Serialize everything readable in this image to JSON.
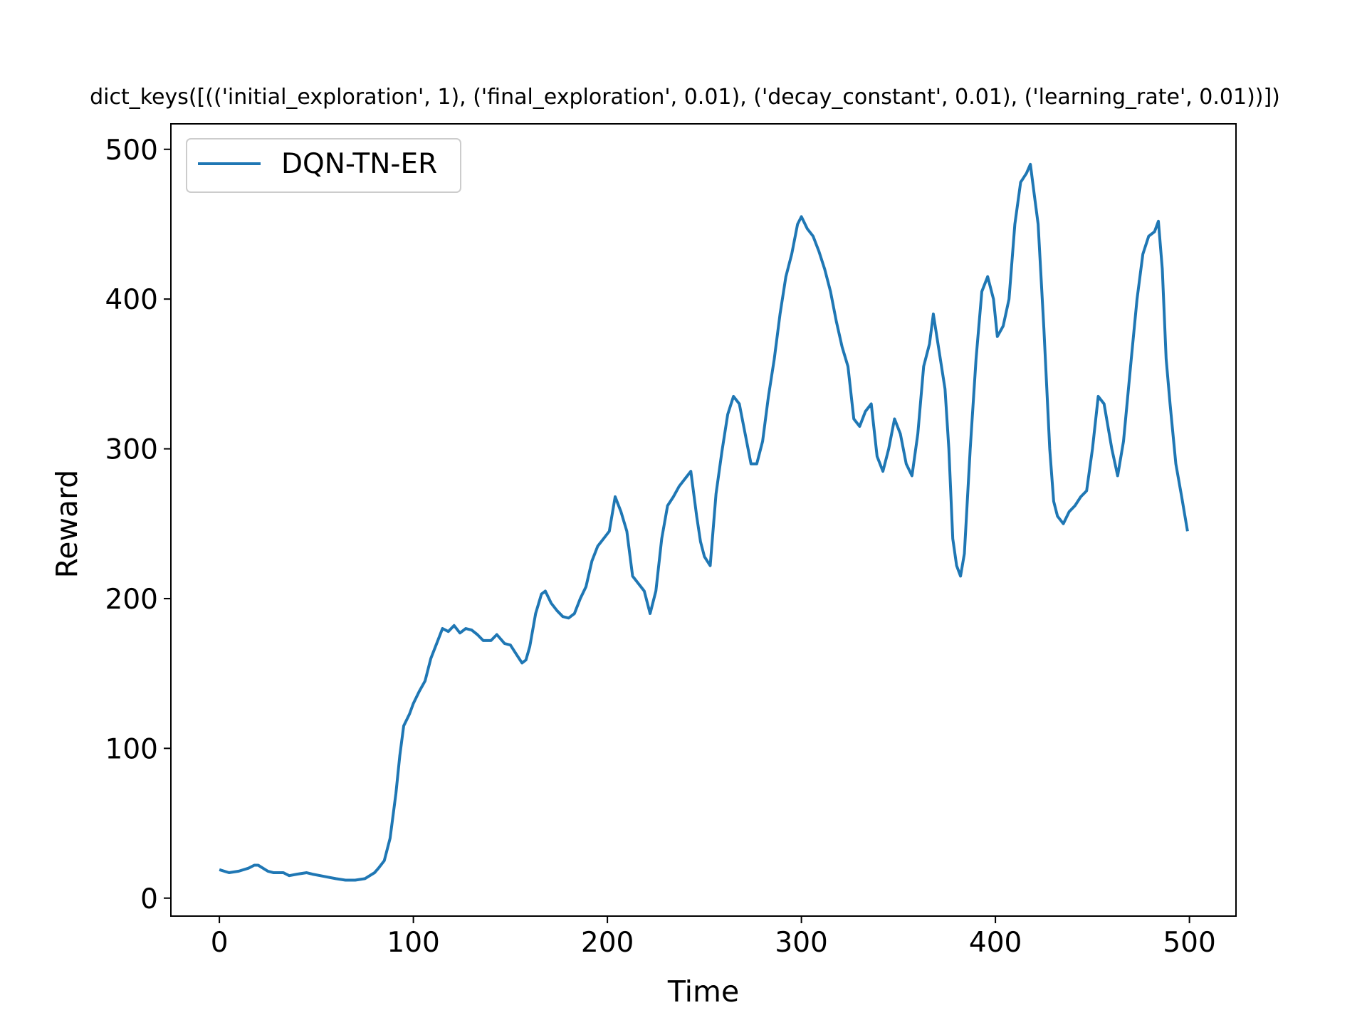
{
  "chart_data": {
    "type": "line",
    "title": "dict_keys([(('initial_exploration', 1), ('final_exploration', 0.01), ('decay_constant', 0.01), ('learning_rate', 0.01))])",
    "xlabel": "Time",
    "ylabel": "Reward",
    "xlim": [
      -25,
      524
    ],
    "ylim": [
      -12,
      517
    ],
    "xticks": [
      0,
      100,
      200,
      300,
      400,
      500
    ],
    "yticks": [
      0,
      100,
      200,
      300,
      400,
      500
    ],
    "grid": false,
    "legend_position": "top-left",
    "series": [
      {
        "name": "DQN-TN-ER",
        "color": "#1f77b4",
        "x": [
          0,
          5,
          10,
          15,
          18,
          20,
          25,
          28,
          33,
          36,
          40,
          45,
          48,
          52,
          56,
          60,
          65,
          70,
          75,
          80,
          82,
          85,
          88,
          91,
          93,
          95,
          98,
          100,
          103,
          106,
          109,
          112,
          115,
          118,
          121,
          124,
          127,
          130,
          133,
          136,
          140,
          143,
          147,
          150,
          153,
          156,
          158,
          160,
          163,
          166,
          168,
          171,
          174,
          177,
          180,
          183,
          186,
          189,
          192,
          195,
          198,
          201,
          204,
          207,
          210,
          213,
          216,
          219,
          222,
          225,
          228,
          231,
          234,
          237,
          240,
          243,
          246,
          248,
          250,
          253,
          256,
          259,
          262,
          265,
          268,
          271,
          274,
          277,
          280,
          283,
          286,
          289,
          292,
          295,
          298,
          300,
          303,
          306,
          309,
          312,
          315,
          318,
          321,
          324,
          327,
          330,
          333,
          336,
          339,
          342,
          345,
          348,
          351,
          354,
          357,
          360,
          363,
          366,
          368,
          371,
          374,
          376,
          378,
          380,
          382,
          384,
          387,
          390,
          393,
          396,
          399,
          401,
          404,
          407,
          410,
          413,
          416,
          418,
          420,
          422,
          425,
          428,
          430,
          432,
          435,
          438,
          441,
          444,
          447,
          450,
          453,
          456,
          460,
          463,
          466,
          470,
          473,
          476,
          479,
          482,
          484,
          486,
          488,
          490,
          493,
          496,
          499
        ],
        "y": [
          19,
          17,
          18,
          20,
          22,
          22,
          18,
          17,
          17,
          15,
          16,
          17,
          16,
          15,
          14,
          13,
          12,
          12,
          13,
          17,
          20,
          25,
          40,
          70,
          95,
          115,
          123,
          130,
          138,
          145,
          160,
          170,
          180,
          178,
          182,
          177,
          180,
          179,
          176,
          172,
          172,
          176,
          170,
          169,
          163,
          157,
          159,
          168,
          190,
          203,
          205,
          197,
          192,
          188,
          187,
          190,
          200,
          208,
          225,
          235,
          240,
          245,
          268,
          258,
          245,
          215,
          210,
          205,
          190,
          205,
          240,
          262,
          268,
          275,
          280,
          285,
          255,
          238,
          228,
          222,
          270,
          298,
          323,
          335,
          330,
          310,
          290,
          290,
          305,
          335,
          360,
          390,
          415,
          430,
          450,
          455,
          447,
          442,
          432,
          420,
          405,
          385,
          368,
          355,
          320,
          315,
          325,
          330,
          295,
          285,
          300,
          320,
          310,
          290,
          282,
          310,
          355,
          370,
          390,
          365,
          340,
          300,
          240,
          222,
          215,
          230,
          300,
          360,
          405,
          415,
          400,
          375,
          382,
          400,
          450,
          478,
          484,
          490,
          470,
          450,
          380,
          300,
          265,
          255,
          250,
          258,
          262,
          268,
          272,
          300,
          335,
          330,
          300,
          282,
          305,
          360,
          400,
          430,
          442,
          445,
          452,
          420,
          360,
          330,
          290,
          268,
          245
        ]
      }
    ]
  }
}
